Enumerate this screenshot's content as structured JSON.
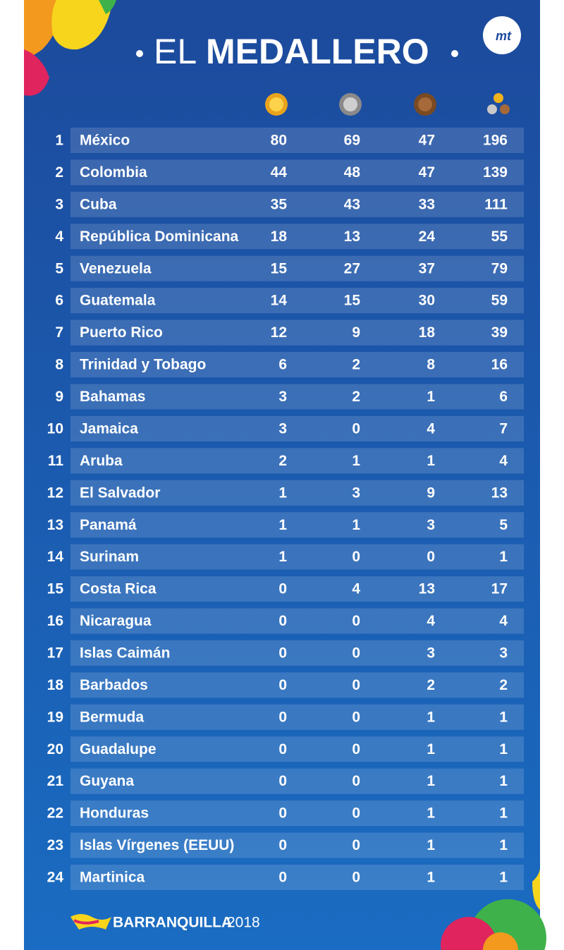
{
  "header": {
    "title_light": "EL",
    "title_bold": "MEDALLERO",
    "logo": "mt"
  },
  "table": {
    "rows": [
      [
        1,
        "México",
        80,
        69,
        47,
        196
      ],
      [
        2,
        "Colombia",
        44,
        48,
        47,
        139
      ],
      [
        3,
        "Cuba",
        35,
        43,
        33,
        111
      ],
      [
        4,
        "República Dominicana",
        18,
        13,
        24,
        55
      ],
      [
        5,
        "Venezuela",
        15,
        27,
        37,
        79
      ],
      [
        6,
        "Guatemala",
        14,
        15,
        30,
        59
      ],
      [
        7,
        "Puerto Rico",
        12,
        9,
        18,
        39
      ],
      [
        8,
        "Trinidad y Tobago",
        6,
        2,
        8,
        16
      ],
      [
        9,
        "Bahamas",
        3,
        2,
        1,
        6
      ],
      [
        10,
        "Jamaica",
        3,
        0,
        4,
        7
      ],
      [
        11,
        "Aruba",
        2,
        1,
        1,
        4
      ],
      [
        12,
        "El Salvador",
        1,
        3,
        9,
        13
      ],
      [
        13,
        "Panamá",
        1,
        1,
        3,
        5
      ],
      [
        14,
        "Surinam",
        1,
        0,
        0,
        1
      ],
      [
        15,
        "Costa Rica",
        0,
        4,
        13,
        17
      ],
      [
        16,
        "Nicaragua",
        0,
        0,
        4,
        4
      ],
      [
        17,
        "Islas Caimán",
        0,
        0,
        3,
        3
      ],
      [
        18,
        "Barbados",
        0,
        0,
        2,
        2
      ],
      [
        19,
        "Bermuda",
        0,
        0,
        1,
        1
      ],
      [
        20,
        "Guadalupe",
        0,
        0,
        1,
        1
      ],
      [
        21,
        "Guyana",
        0,
        0,
        1,
        1
      ],
      [
        22,
        "Honduras",
        0,
        0,
        1,
        1
      ],
      [
        23,
        "Islas Vírgenes (EEUU)",
        0,
        0,
        1,
        1
      ],
      [
        24,
        "Martinica",
        0,
        0,
        1,
        1
      ]
    ]
  },
  "footer": {
    "brand": "BARRANQUILLA",
    "year": "2018"
  }
}
